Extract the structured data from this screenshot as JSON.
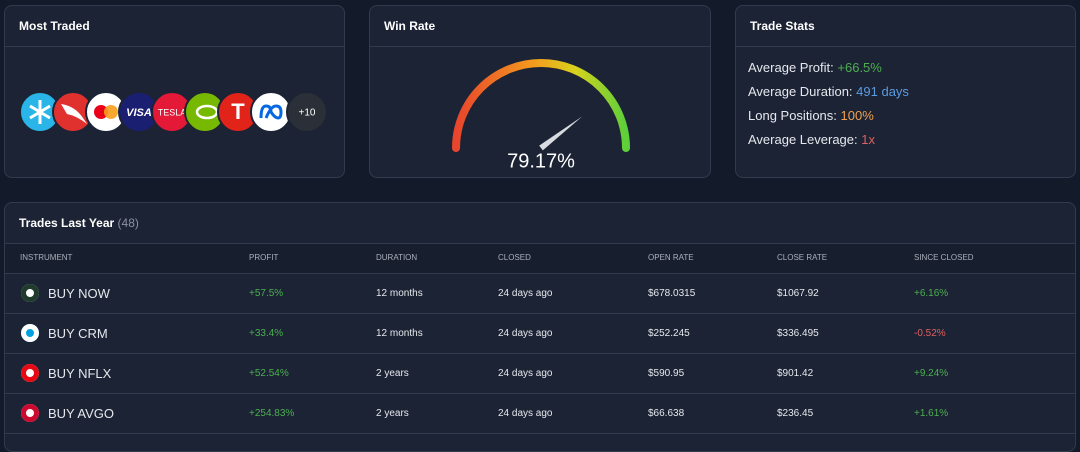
{
  "most_traded": {
    "title": "Most Traded",
    "logo_texts": {
      "visa": "VISA",
      "tesla": "TESLA",
      "t": "T"
    },
    "more": "+10"
  },
  "win_rate": {
    "title": "Win Rate",
    "value": {
      "value": 79.17,
      "label": "79.17%"
    }
  },
  "trade_stats": {
    "title": "Trade Stats",
    "items": [
      {
        "label": "Average Profit:",
        "value": "+66.5%",
        "color": "#4caf50"
      },
      {
        "label": "Average Duration:",
        "value": "491 days",
        "color": "#5b9be0"
      },
      {
        "label": "Long Positions:",
        "value": "100%",
        "color": "#f0a050"
      },
      {
        "label": "Average Leverage:",
        "value": "1x",
        "color": "#e06060"
      }
    ]
  },
  "trades": {
    "title": "Trades Last Year",
    "count": "(48)",
    "columns": [
      "INSTRUMENT",
      "PROFIT",
      "DURATION",
      "CLOSED",
      "OPEN RATE",
      "CLOSE RATE",
      "SINCE CLOSED"
    ],
    "rows": [
      [
        "BUY NOW",
        "+57.5%",
        "12 months",
        "24 days ago",
        "$678.0315",
        "$1067.92",
        "+6.16%"
      ],
      [
        "BUY CRM",
        "+33.4%",
        "12 months",
        "24 days ago",
        "$252.245",
        "$336.495",
        "-0.52%"
      ],
      [
        "BUY NFLX",
        "+52.54%",
        "2 years",
        "24 days ago",
        "$590.95",
        "$901.42",
        "+9.24%"
      ],
      [
        "BUY AVGO",
        "+254.83%",
        "2 years",
        "24 days ago",
        "$66.638",
        "$236.45",
        "+1.61%"
      ]
    ]
  }
}
